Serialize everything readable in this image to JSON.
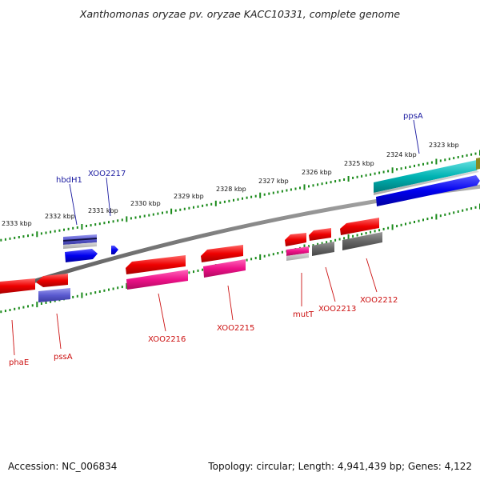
{
  "title": "Xanthomonas oryzae pv. oryzae KACC10331, complete genome",
  "footer": {
    "accession": "Accession: NC_006834",
    "summary": "Topology: circular; Length: 4,941,439 bp; Genes: 4,122"
  },
  "colors": {
    "backbone": "#808080",
    "tick": "#1a8a1a",
    "forward_label": "#1a1aa0",
    "reverse_label": "#cc1111"
  },
  "scale": {
    "unit": "kbp",
    "labels": [
      "2333 kbp",
      "2332 kbp",
      "2331 kbp",
      "2330 kbp",
      "2329 kbp",
      "2328 kbp",
      "2327 kbp",
      "2326 kbp",
      "2325 kbp",
      "2324 kbp",
      "2323 kbp"
    ]
  },
  "genes_forward": [
    {
      "name": "hbdH1",
      "color": "#5555cc"
    },
    {
      "name": "XOO2217",
      "color": "#0000ee"
    },
    {
      "name": "ppsA",
      "color": "#00b3b3"
    }
  ],
  "genes_reverse": [
    {
      "name": "phaE",
      "color": "#ee0000"
    },
    {
      "name": "pssA",
      "color": "#5a5ad0"
    },
    {
      "name": "XOO2216",
      "color": "#ee1188"
    },
    {
      "name": "XOO2215",
      "color": "#ee1188"
    },
    {
      "name": "mutT",
      "color": "#ee1188"
    },
    {
      "name": "XOO2213",
      "color": "#666666"
    },
    {
      "name": "XOO2212",
      "color": "#666666"
    }
  ]
}
